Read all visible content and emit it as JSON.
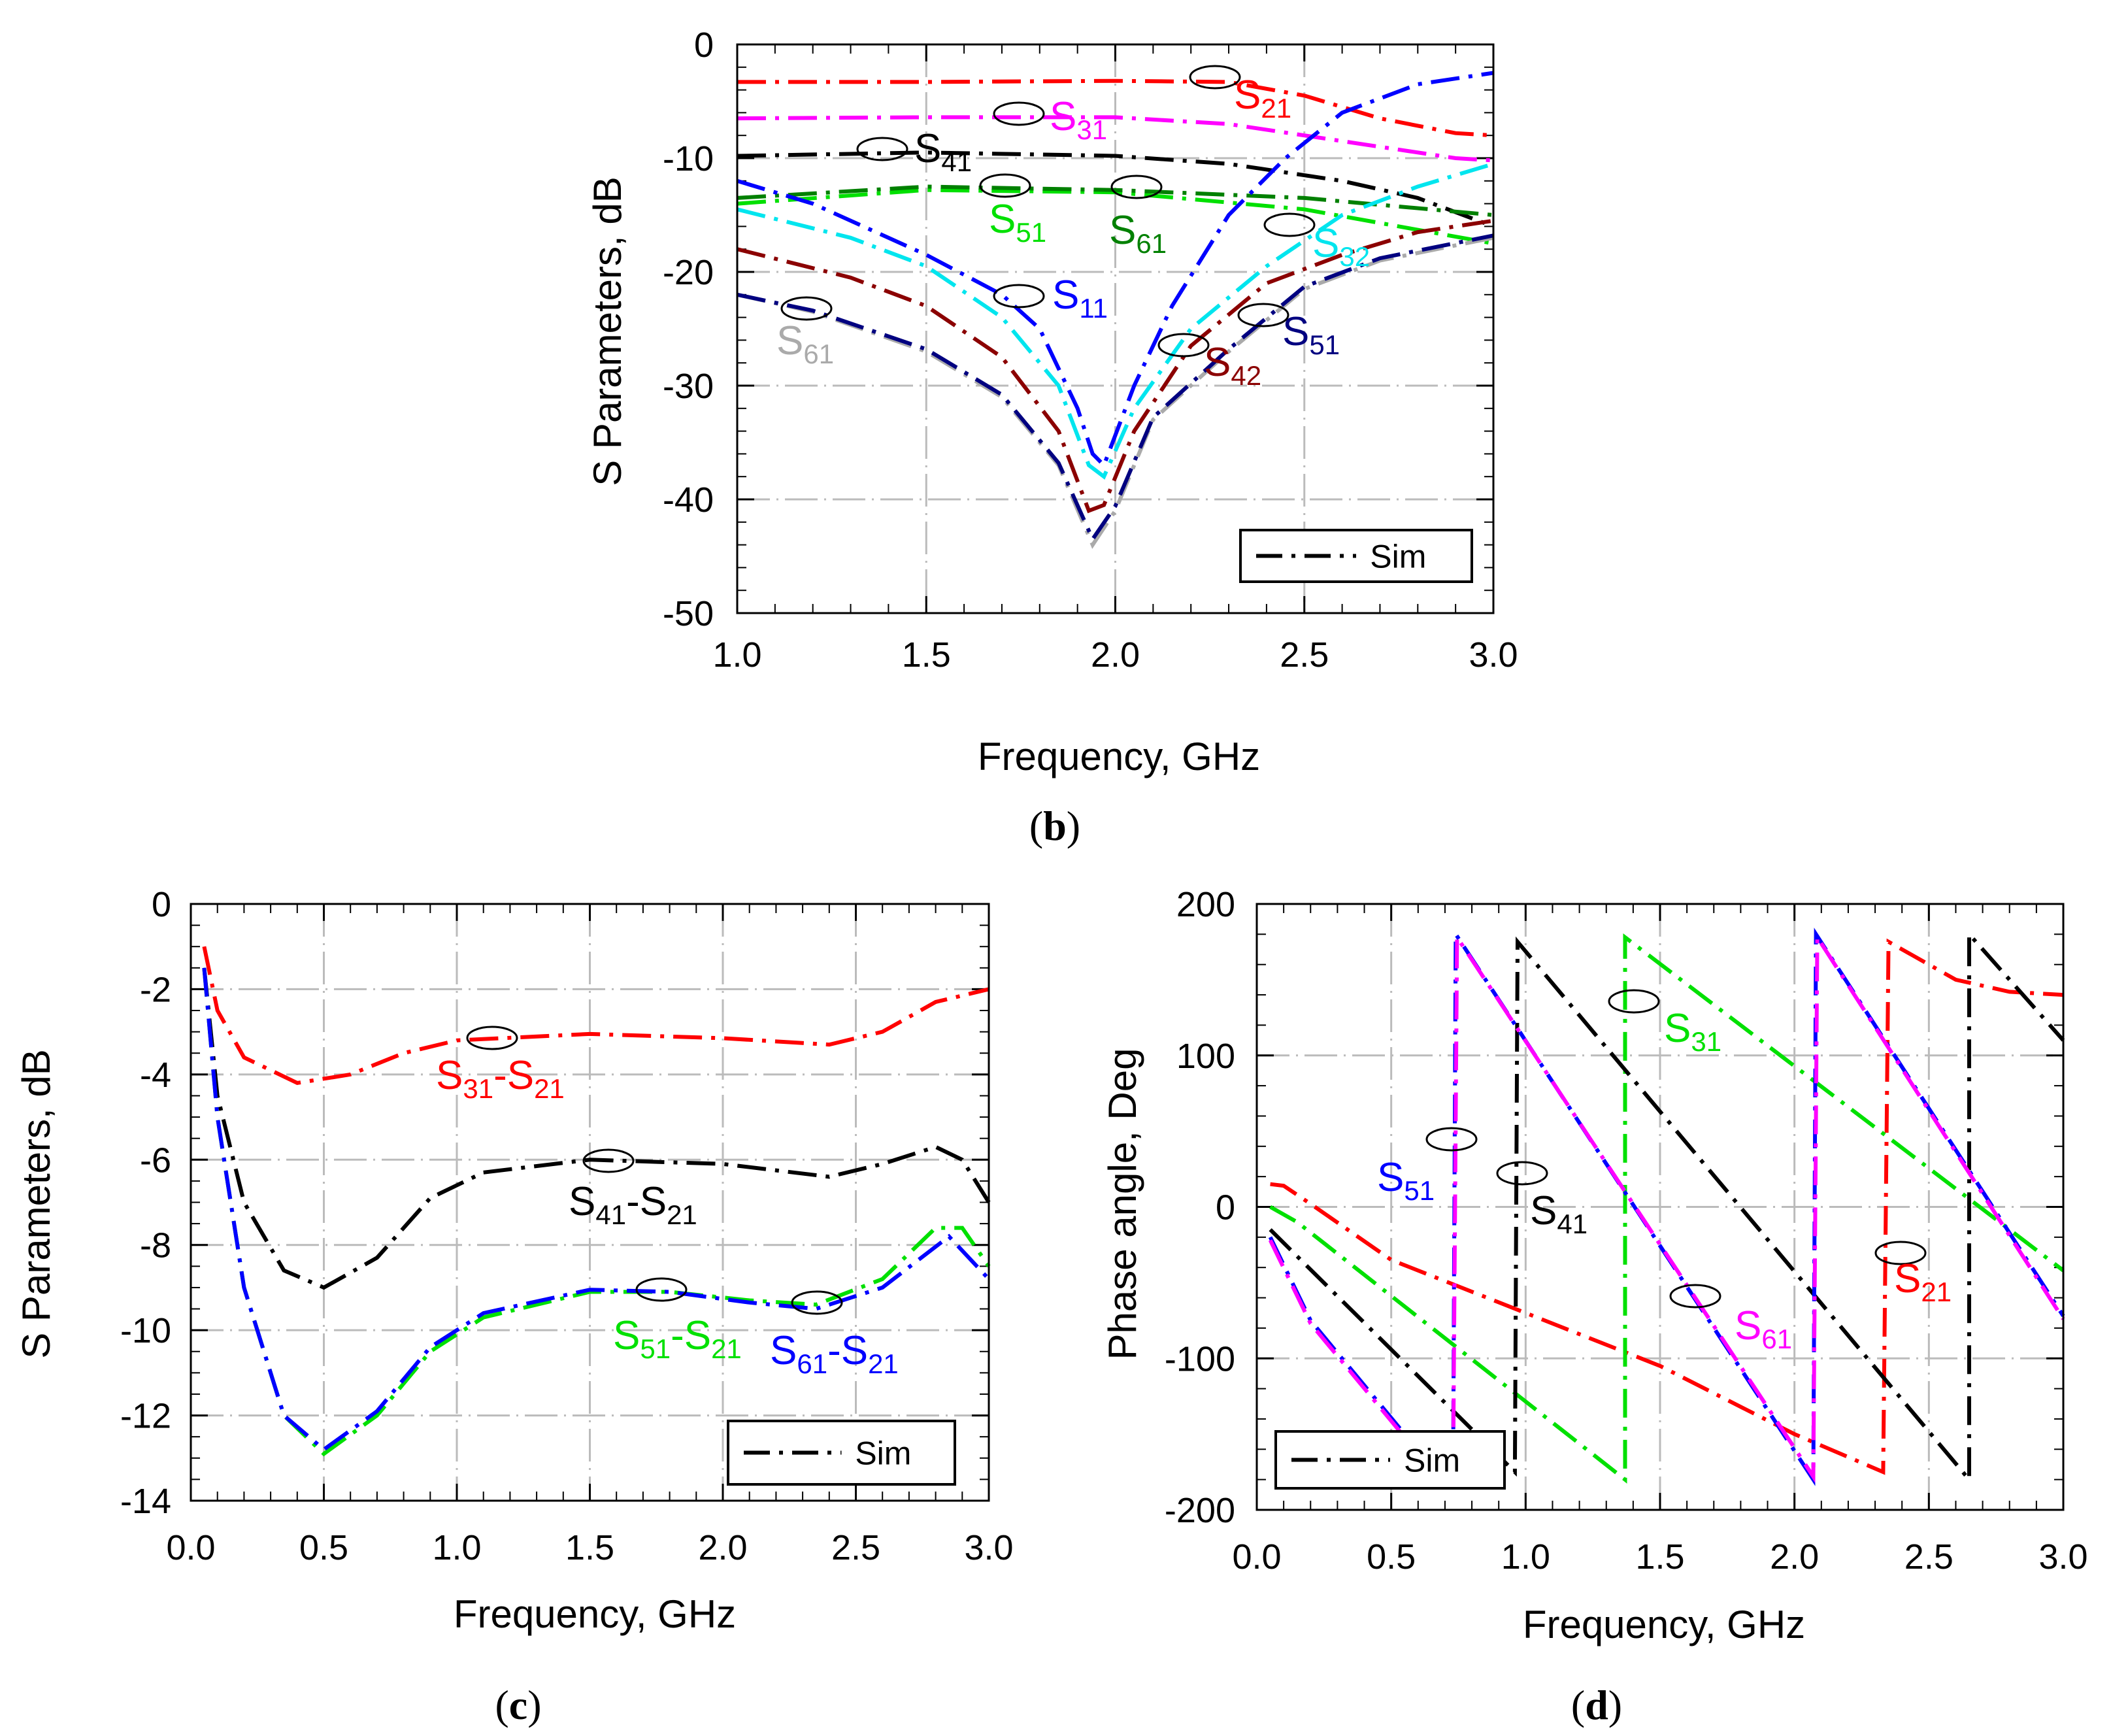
{
  "chart_data": [
    {
      "id": "b",
      "type": "line",
      "panel_label": "b",
      "xlabel": "Frequency, GHz",
      "ylabel": "S Parameters, dB",
      "xlim": [
        1.0,
        3.0
      ],
      "ylim": [
        -50,
        0
      ],
      "xticks": [
        "1.0",
        "1.5",
        "2.0",
        "2.5",
        "3.0"
      ],
      "yticks": [
        "0",
        "-10",
        "-20",
        "-30",
        "-40",
        "-50"
      ],
      "grid": true,
      "legend": {
        "label": "Sim",
        "placement": "bottom-right"
      },
      "series": [
        {
          "name": "S21",
          "label": [
            "S",
            "21"
          ],
          "color": "#ff0000",
          "x": [
            1,
            1.5,
            2,
            2.3,
            2.5,
            2.7,
            2.9,
            3
          ],
          "y": [
            -3.3,
            -3.3,
            -3.2,
            -3.3,
            -4.5,
            -6.5,
            -7.8,
            -8
          ]
        },
        {
          "name": "S31",
          "label": [
            "S",
            "31"
          ],
          "color": "#ff00ff",
          "x": [
            1,
            1.5,
            2,
            2.3,
            2.6,
            2.9,
            3
          ],
          "y": [
            -6.5,
            -6.4,
            -6.4,
            -7,
            -8.5,
            -10,
            -10.2
          ]
        },
        {
          "name": "S41",
          "label": [
            "S",
            "41"
          ],
          "color": "#000000",
          "x": [
            1,
            1.5,
            2,
            2.3,
            2.6,
            2.8,
            3
          ],
          "y": [
            -9.8,
            -9.5,
            -9.8,
            -10.5,
            -12,
            -13.5,
            -16
          ]
        },
        {
          "name": "S51",
          "label": [
            "S",
            "51"
          ],
          "color": "#00e000",
          "x": [
            1,
            1.5,
            2,
            2.5,
            3
          ],
          "y": [
            -14,
            -12.8,
            -13,
            -14.5,
            -17.5
          ]
        },
        {
          "name": "S61",
          "label": [
            "S",
            "61"
          ],
          "color": "#008000",
          "x": [
            1,
            1.5,
            2,
            2.5,
            3
          ],
          "y": [
            -13.5,
            -12.5,
            -12.8,
            -13.5,
            -15
          ]
        },
        {
          "name": "S11",
          "label": [
            "S",
            "11"
          ],
          "color": "#0000ff",
          "x": [
            1,
            1.2,
            1.5,
            1.7,
            1.8,
            1.9,
            1.94,
            1.97,
            2.05,
            2.15,
            2.3,
            2.45,
            2.6,
            2.8,
            3
          ],
          "y": [
            -12,
            -14,
            -18.5,
            -22,
            -25,
            -32,
            -36,
            -37,
            -30,
            -23,
            -15,
            -10,
            -6,
            -3.5,
            -2.5
          ]
        },
        {
          "name": "S32",
          "label": [
            "S",
            "32"
          ],
          "color": "#00e5ee",
          "x": [
            1,
            1.3,
            1.5,
            1.7,
            1.85,
            1.93,
            1.97,
            2.05,
            2.2,
            2.4,
            2.6,
            2.8,
            3
          ],
          "y": [
            -14.5,
            -17,
            -19.5,
            -24,
            -30,
            -37,
            -38,
            -32,
            -25,
            -19.5,
            -15,
            -12.5,
            -10.5
          ]
        },
        {
          "name": "S42",
          "label": [
            "S",
            "42"
          ],
          "color": "#8b0000",
          "x": [
            1,
            1.3,
            1.5,
            1.7,
            1.85,
            1.93,
            1.97,
            2.05,
            2.2,
            2.4,
            2.6,
            2.8,
            3
          ],
          "y": [
            -18,
            -20.5,
            -23,
            -27.5,
            -34,
            -41,
            -40.5,
            -34,
            -26.5,
            -21,
            -18.5,
            -16.5,
            -15.5
          ]
        },
        {
          "name": "S61 (gray)",
          "label": [
            "S",
            "61"
          ],
          "color": "#aaaaaa",
          "x": [
            1,
            1.2,
            1.5,
            1.7,
            1.85,
            1.94,
            2,
            2.1,
            2.3,
            2.5,
            2.7,
            3
          ],
          "y": [
            -22,
            -23.5,
            -27,
            -31,
            -37,
            -44,
            -41,
            -33,
            -27,
            -21.5,
            -19,
            -17
          ]
        },
        {
          "name": "S51 (navy)",
          "label": [
            "S",
            "51"
          ],
          "color": "#000080",
          "x": [
            1,
            1.2,
            1.5,
            1.7,
            1.85,
            1.94,
            2,
            2.1,
            2.3,
            2.5,
            2.7,
            3
          ],
          "y": [
            -22,
            -23.4,
            -26.8,
            -30.8,
            -36.8,
            -43.5,
            -40.6,
            -32.8,
            -26.8,
            -21.3,
            -18.8,
            -16.8
          ]
        }
      ]
    },
    {
      "id": "c",
      "type": "line",
      "panel_label": "c",
      "xlabel": "Frequency, GHz",
      "ylabel": "S Parameters, dB",
      "xlim": [
        0.0,
        3.0
      ],
      "ylim": [
        -14,
        0
      ],
      "xticks": [
        "0.0",
        "0.5",
        "1.0",
        "1.5",
        "2.0",
        "2.5",
        "3.0"
      ],
      "yticks": [
        "0",
        "-2",
        "-4",
        "-6",
        "-8",
        "-10",
        "-12",
        "-14"
      ],
      "grid": true,
      "legend": {
        "label": "Sim",
        "placement": "bottom-right"
      },
      "series": [
        {
          "name": "S31-S21",
          "label": [
            "S",
            "31",
            "-S",
            "21"
          ],
          "color": "#ff0000",
          "x": [
            0.05,
            0.1,
            0.2,
            0.4,
            0.6,
            0.8,
            1.0,
            1.5,
            2.0,
            2.4,
            2.6,
            2.8,
            3.0
          ],
          "y": [
            -1,
            -2.5,
            -3.6,
            -4.2,
            -4.0,
            -3.5,
            -3.2,
            -3.05,
            -3.15,
            -3.3,
            -3.0,
            -2.3,
            -2.0
          ]
        },
        {
          "name": "S41-S21",
          "label": [
            "S",
            "41",
            "-S",
            "21"
          ],
          "color": "#000000",
          "x": [
            0.05,
            0.1,
            0.2,
            0.35,
            0.5,
            0.7,
            0.9,
            1.1,
            1.5,
            2.0,
            2.4,
            2.6,
            2.8,
            2.9,
            3.0
          ],
          "y": [
            -1.5,
            -4.5,
            -7,
            -8.6,
            -9,
            -8.3,
            -6.9,
            -6.3,
            -6,
            -6.1,
            -6.4,
            -6.1,
            -5.7,
            -6,
            -7
          ]
        },
        {
          "name": "S51-S21",
          "label": [
            "S",
            "51",
            "-S",
            "21"
          ],
          "color": "#00e000",
          "x": [
            0.05,
            0.1,
            0.2,
            0.35,
            0.5,
            0.7,
            0.9,
            1.1,
            1.5,
            1.8,
            2.1,
            2.35,
            2.6,
            2.8,
            2.9,
            3.0
          ],
          "y": [
            -1.5,
            -5,
            -9,
            -12,
            -12.9,
            -12,
            -10.5,
            -9.7,
            -9.1,
            -9.1,
            -9.3,
            -9.4,
            -8.8,
            -7.6,
            -7.6,
            -8.5
          ]
        },
        {
          "name": "S61-S21",
          "label": [
            "S",
            "61",
            "-S",
            "21"
          ],
          "color": "#0000ff",
          "x": [
            0.05,
            0.1,
            0.2,
            0.35,
            0.5,
            0.7,
            0.9,
            1.1,
            1.5,
            1.8,
            2.1,
            2.35,
            2.6,
            2.85,
            3.0
          ],
          "y": [
            -1.5,
            -5,
            -9,
            -12,
            -12.8,
            -11.9,
            -10.4,
            -9.6,
            -9.05,
            -9.1,
            -9.35,
            -9.5,
            -9.0,
            -7.8,
            -8.8
          ]
        }
      ]
    },
    {
      "id": "d",
      "type": "line",
      "panel_label": "d",
      "xlabel": "Frequency, GHz",
      "ylabel": "Phase angle,  Deg",
      "xlim": [
        0.0,
        3.0
      ],
      "ylim": [
        -200,
        200
      ],
      "xticks": [
        "0.0",
        "0.5",
        "1.0",
        "1.5",
        "2.0",
        "2.5",
        "3.0"
      ],
      "yticks": [
        "200",
        "100",
        "0",
        "-100",
        "-200"
      ],
      "grid": true,
      "legend": {
        "label": "Sim",
        "placement": "bottom-left"
      },
      "series": [
        {
          "name": "S21",
          "label": [
            "S",
            "21"
          ],
          "color": "#ff0000",
          "x": [
            0.05,
            0.1,
            0.2,
            0.5,
            1.0,
            1.5,
            2.0,
            2.33,
            2.35,
            2.6,
            2.8,
            3.0
          ],
          "y": [
            15,
            14,
            2,
            -35,
            -70,
            -105,
            -150,
            -175,
            175,
            150,
            142,
            140
          ]
        },
        {
          "name": "S31",
          "label": [
            "S",
            "31"
          ],
          "color": "#00e000",
          "x": [
            0.05,
            0.15,
            1.37,
            1.37,
            3.0
          ],
          "y": [
            0,
            -10,
            -180,
            178,
            -42
          ]
        },
        {
          "name": "S41",
          "label": [
            "S",
            "41"
          ],
          "color": "#000000",
          "x": [
            0.05,
            0.96,
            0.97,
            2.65,
            2.65,
            3.0
          ],
          "y": [
            -15,
            -175,
            175,
            -180,
            180,
            110
          ]
        },
        {
          "name": "S51",
          "label": [
            "S",
            "51"
          ],
          "color": "#0000ff",
          "x": [
            0.05,
            0.2,
            0.55,
            0.73,
            0.74,
            2.07,
            2.08,
            3.0
          ],
          "y": [
            -20,
            -75,
            -150,
            -180,
            180,
            -180,
            180,
            -72
          ]
        },
        {
          "name": "S61",
          "label": [
            "S",
            "61"
          ],
          "color": "#ff00ff",
          "x": [
            0.05,
            0.2,
            0.55,
            0.73,
            0.745,
            2.07,
            2.085,
            3.0
          ],
          "y": [
            -22,
            -77,
            -152,
            -180,
            178,
            -178,
            178,
            -74
          ]
        }
      ]
    }
  ]
}
